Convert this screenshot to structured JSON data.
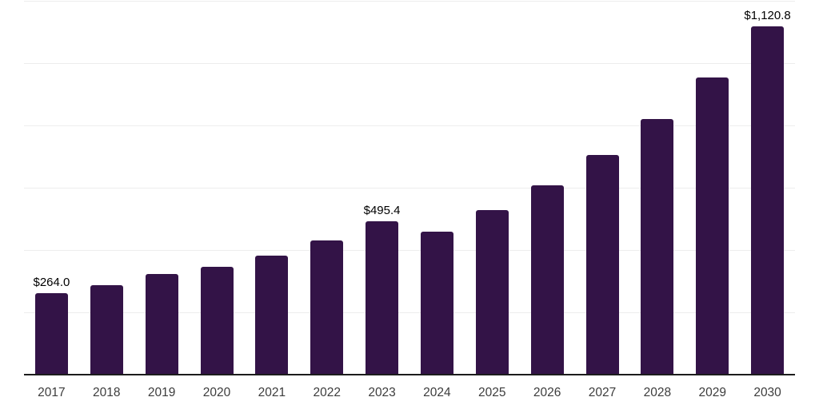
{
  "chart_data": {
    "type": "bar",
    "title": "",
    "xlabel": "",
    "ylabel": "",
    "categories": [
      "2017",
      "2018",
      "2019",
      "2020",
      "2021",
      "2022",
      "2023",
      "2024",
      "2025",
      "2026",
      "2027",
      "2028",
      "2029",
      "2030"
    ],
    "values": [
      264.0,
      291,
      325,
      350,
      385,
      434,
      495.4,
      461,
      532,
      611,
      708,
      823,
      957,
      1120.8
    ],
    "data_labels": [
      "$264.0",
      "",
      "",
      "",
      "",
      "",
      "$495.4",
      "",
      "",
      "",
      "",
      "",
      "",
      "$1,120.8"
    ],
    "ylim": [
      0,
      1200
    ],
    "grid": true,
    "gridline_interval": 200,
    "legend": false,
    "colors": {
      "bar": "#331347",
      "gridline": "#ededed",
      "axis_line": "#1c1c1c",
      "tick_label": "#3c3c3c",
      "data_label": "#000000",
      "background": "#ffffff"
    }
  }
}
